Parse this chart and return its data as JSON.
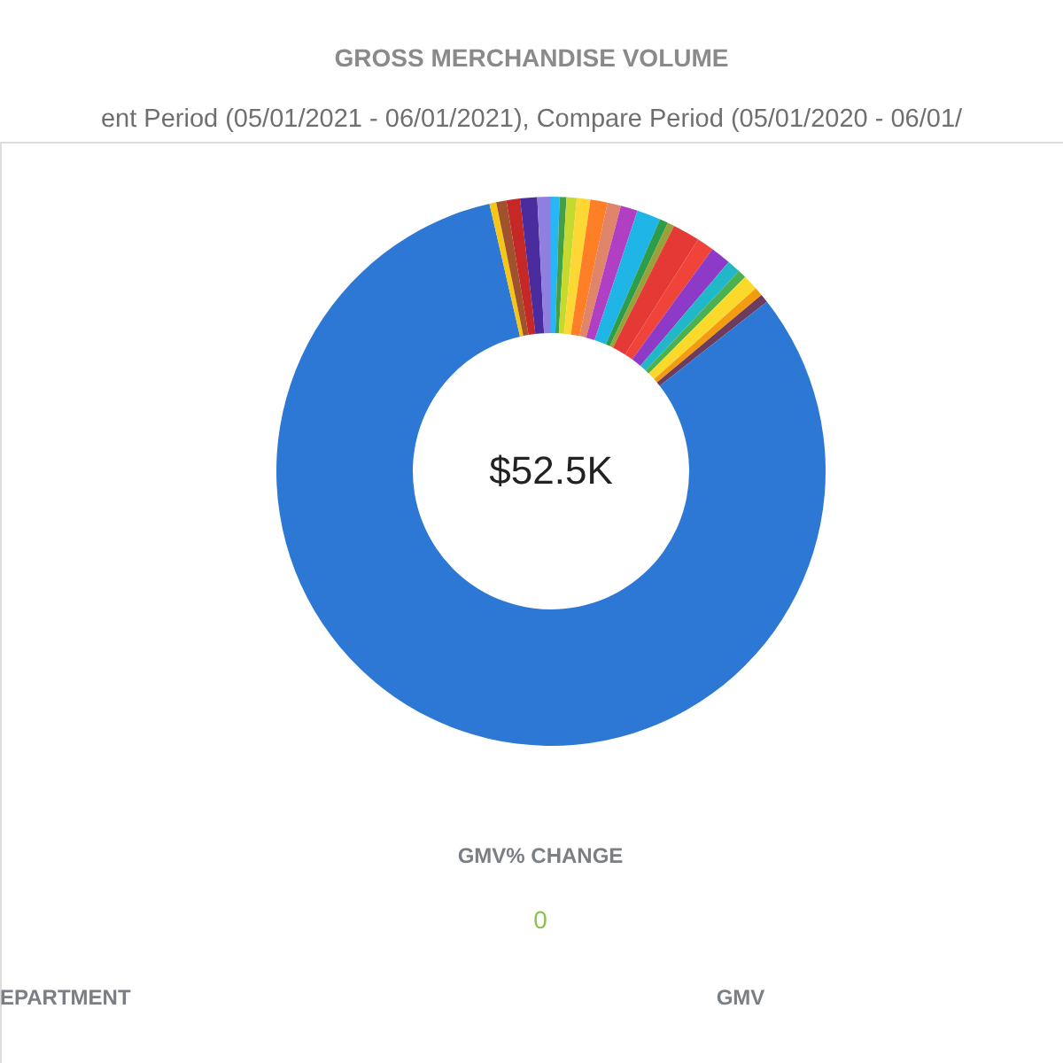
{
  "chart_data": {
    "type": "donut",
    "title": "GROSS MERCHANDISE VOLUME",
    "subtitle": "ent Period (05/01/2021 - 06/01/2021), Compare Period (05/01/2020 - 06/01/",
    "categories": [
      null,
      null,
      null,
      null,
      null,
      null,
      null,
      null,
      null,
      null,
      null,
      null,
      null,
      null,
      null,
      null,
      null,
      null,
      null,
      null,
      null,
      null,
      null,
      null
    ],
    "values": [
      0.5,
      0.4,
      0.6,
      0.8,
      1.0,
      0.8,
      1.0,
      1.4,
      0.5,
      0.4,
      1.6,
      1.0,
      1.2,
      0.8,
      0.5,
      0.9,
      0.5,
      0.5,
      82.0,
      0.4,
      0.6,
      0.8,
      1.0,
      0.8
    ],
    "colors": [
      "#29b6f6",
      "#43a047",
      "#c6d92e",
      "#fdd835",
      "#ff7f27",
      "#e0856a",
      "#b03fc4",
      "#1fb5e6",
      "#2e9d4a",
      "#9aa13a",
      "#e53935",
      "#f0443a",
      "#8e3ac8",
      "#20b8c8",
      "#4caf50",
      "#fbd92b",
      "#f39c12",
      "#6d3b5e",
      "#2c78d4",
      "#f5c518",
      "#a0522d",
      "#c62828",
      "#4a2c9e",
      "#8f7fe0"
    ],
    "annotations": [
      "$52.5K",
      "GMV% CHANGE",
      "0",
      "EPARTMENT",
      "GMV"
    ]
  }
}
